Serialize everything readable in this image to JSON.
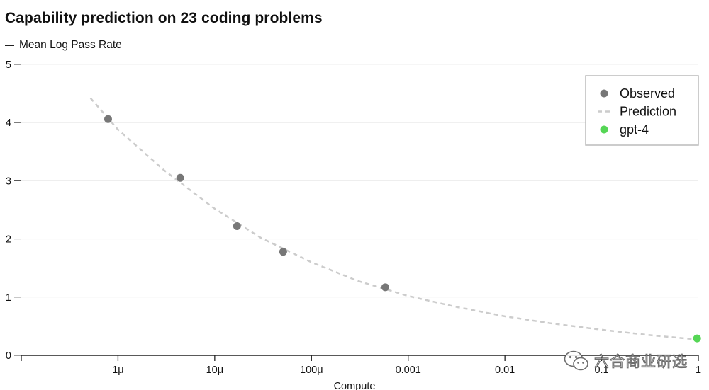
{
  "chart_data": {
    "type": "scatter",
    "title": "Capability prediction on 23 coding problems",
    "ylabel": "Mean Log Pass Rate",
    "xlabel": "Compute",
    "x_scale": "log",
    "xlim": [
      1e-07,
      1
    ],
    "ylim": [
      0,
      5
    ],
    "x_ticks": [
      1e-07,
      1e-06,
      1e-05,
      0.0001,
      0.001,
      0.01,
      0.1,
      1
    ],
    "x_tick_labels": [
      "",
      "1μ",
      "10μ",
      "100μ",
      "0.001",
      "0.01",
      "0.1",
      "1"
    ],
    "y_ticks": [
      0,
      1,
      2,
      3,
      4,
      5
    ],
    "y_tick_labels": [
      "0",
      "1",
      "2",
      "3",
      "4",
      "5"
    ],
    "grid": "horizontal",
    "legend_placement": "top-right",
    "legend": [
      {
        "label": "Observed",
        "marker": "dot",
        "color": "#777777"
      },
      {
        "label": "Prediction",
        "marker": "dashed-line",
        "color": "#cccccc"
      },
      {
        "label": "gpt-4",
        "marker": "dot",
        "color": "#55d655"
      }
    ],
    "series": [
      {
        "name": "Observed",
        "color": "#777777",
        "points": [
          {
            "x": 7.9e-07,
            "y": 4.06
          },
          {
            "x": 4.4e-06,
            "y": 3.05
          },
          {
            "x": 1.7e-05,
            "y": 2.22
          },
          {
            "x": 5.1e-05,
            "y": 1.78
          },
          {
            "x": 0.00058,
            "y": 1.17
          }
        ]
      },
      {
        "name": "Prediction",
        "color": "#cccccc",
        "style": "dashed",
        "points": [
          {
            "x": 5.2e-07,
            "y": 4.42
          },
          {
            "x": 1e-06,
            "y": 3.88
          },
          {
            "x": 3e-06,
            "y": 3.18
          },
          {
            "x": 1e-05,
            "y": 2.52
          },
          {
            "x": 3e-05,
            "y": 2.02
          },
          {
            "x": 0.0001,
            "y": 1.6
          },
          {
            "x": 0.0003,
            "y": 1.28
          },
          {
            "x": 0.001,
            "y": 1.02
          },
          {
            "x": 0.003,
            "y": 0.84
          },
          {
            "x": 0.01,
            "y": 0.67
          },
          {
            "x": 0.03,
            "y": 0.55
          },
          {
            "x": 0.1,
            "y": 0.44
          },
          {
            "x": 0.3,
            "y": 0.35
          },
          {
            "x": 1,
            "y": 0.27
          }
        ]
      },
      {
        "name": "gpt-4",
        "color": "#55d655",
        "points": [
          {
            "x": 0.97,
            "y": 0.29
          }
        ]
      }
    ]
  },
  "watermark": {
    "text": "六合商业研选",
    "icon": "wechat-icon"
  }
}
